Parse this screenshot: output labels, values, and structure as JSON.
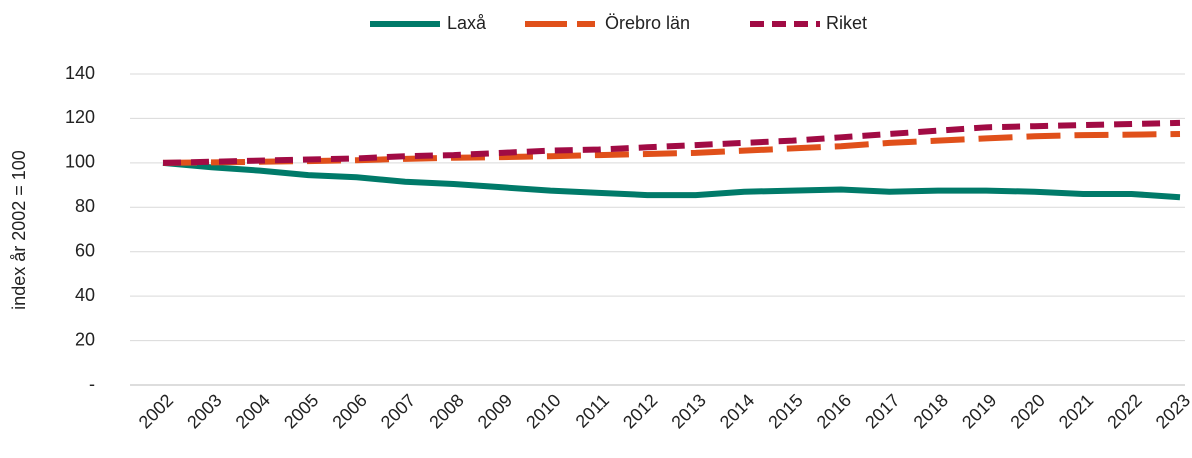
{
  "chart_data": {
    "type": "line",
    "y_label": "index år 2002 = 100",
    "categories": [
      "2002",
      "2003",
      "2004",
      "2005",
      "2006",
      "2007",
      "2008",
      "2009",
      "2010",
      "2011",
      "2012",
      "2013",
      "2014",
      "2015",
      "2016",
      "2017",
      "2018",
      "2019",
      "2020",
      "2021",
      "2022",
      "2023"
    ],
    "series": [
      {
        "name": "Laxå",
        "color": "#007a69",
        "dash": "solid",
        "values": [
          100,
          98,
          96.5,
          94.5,
          93.5,
          91.5,
          90.5,
          89,
          87.5,
          86.5,
          85.5,
          85.5,
          87,
          87.5,
          88,
          87,
          87.5,
          87.5,
          87,
          86,
          86,
          84.5
        ]
      },
      {
        "name": "Örebro län",
        "color": "#e0501a",
        "dash": "long",
        "values": [
          100,
          100.2,
          100.5,
          100.8,
          101.2,
          101.8,
          102.3,
          102.6,
          103,
          103.5,
          104,
          104.5,
          105.5,
          106.5,
          107.5,
          109,
          110,
          111,
          112,
          112.5,
          112.7,
          113
        ]
      },
      {
        "name": "Riket",
        "color": "#a10b44",
        "dash": "short",
        "values": [
          100,
          100.5,
          101,
          101.5,
          102,
          103,
          103.5,
          104.5,
          105.5,
          106,
          107,
          108,
          109,
          110,
          111.5,
          113,
          114.5,
          116,
          116.5,
          117,
          117.5,
          118
        ]
      }
    ],
    "ylim": [
      0,
      140
    ],
    "yticks": [
      {
        "value": 0,
        "label": "-"
      },
      20,
      40,
      60,
      80,
      100,
      120,
      140
    ],
    "grid": true,
    "legend": "top"
  }
}
